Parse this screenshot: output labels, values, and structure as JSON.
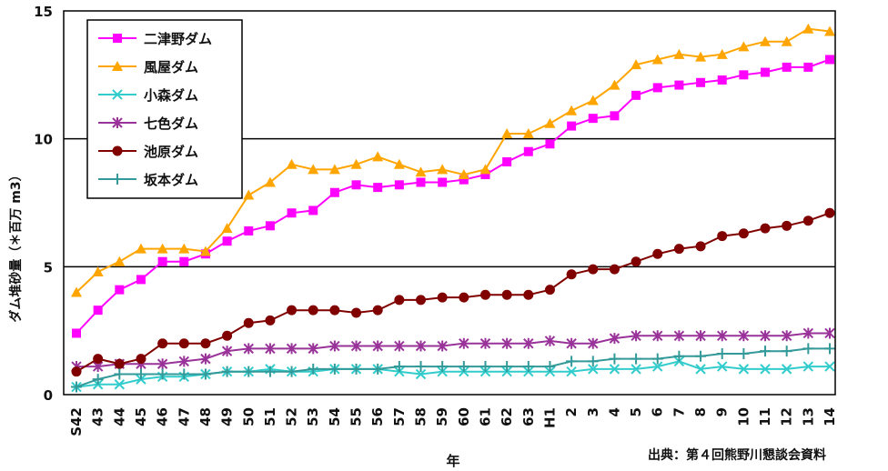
{
  "chart_data": {
    "type": "line",
    "title": "",
    "xlabel": "年",
    "ylabel": "ダム堆砂量（＊百万 m3）",
    "ylim": [
      0,
      15
    ],
    "yticks": [
      0,
      5,
      10,
      15
    ],
    "grid": "horizontal",
    "legend_position": "top-left",
    "categories": [
      "S42",
      "43",
      "44",
      "45",
      "46",
      "47",
      "48",
      "49",
      "50",
      "51",
      "52",
      "53",
      "54",
      "55",
      "56",
      "57",
      "58",
      "59",
      "60",
      "61",
      "62",
      "63",
      "H1",
      "2",
      "3",
      "4",
      "5",
      "6",
      "7",
      "8",
      "9",
      "10",
      "11",
      "12",
      "13",
      "14"
    ],
    "series": [
      {
        "name": "二津野ダム",
        "color": "#ff00ff",
        "marker": "square",
        "values": [
          2.4,
          3.3,
          4.1,
          4.5,
          5.2,
          5.2,
          5.5,
          6.0,
          6.4,
          6.6,
          7.1,
          7.2,
          7.9,
          8.2,
          8.1,
          8.2,
          8.3,
          8.3,
          8.4,
          8.6,
          9.1,
          9.5,
          9.8,
          10.5,
          10.8,
          10.9,
          11.7,
          12.0,
          12.1,
          12.2,
          12.3,
          12.5,
          12.6,
          12.8,
          12.8,
          13.1
        ]
      },
      {
        "name": "風屋ダム",
        "color": "#ffa500",
        "marker": "triangle",
        "values": [
          4.0,
          4.8,
          5.2,
          5.7,
          5.7,
          5.7,
          5.6,
          6.5,
          7.8,
          8.3,
          9.0,
          8.8,
          8.8,
          9.0,
          9.3,
          9.0,
          8.7,
          8.8,
          8.6,
          8.8,
          10.2,
          10.2,
          10.6,
          11.1,
          11.5,
          12.1,
          12.9,
          13.1,
          13.3,
          13.2,
          13.3,
          13.6,
          13.8,
          13.8,
          14.3,
          14.2
        ]
      },
      {
        "name": "小森ダム",
        "color": "#33cccc",
        "marker": "x",
        "values": [
          0.3,
          0.4,
          0.4,
          0.6,
          0.7,
          0.7,
          0.8,
          0.9,
          0.9,
          1.0,
          0.9,
          0.9,
          1.0,
          1.0,
          1.0,
          0.9,
          0.8,
          0.9,
          0.9,
          0.9,
          0.9,
          0.9,
          0.9,
          0.9,
          1.0,
          1.0,
          1.0,
          1.1,
          1.3,
          1.0,
          1.1,
          1.0,
          1.0,
          1.0,
          1.1,
          1.1
        ]
      },
      {
        "name": "七色ダム",
        "color": "#993399",
        "marker": "star",
        "values": [
          1.1,
          1.1,
          1.2,
          1.2,
          1.2,
          1.3,
          1.4,
          1.7,
          1.8,
          1.8,
          1.8,
          1.8,
          1.9,
          1.9,
          1.9,
          1.9,
          1.9,
          1.9,
          2.0,
          2.0,
          2.0,
          2.0,
          2.1,
          2.0,
          2.0,
          2.2,
          2.3,
          2.3,
          2.3,
          2.3,
          2.3,
          2.3,
          2.3,
          2.3,
          2.4,
          2.4
        ]
      },
      {
        "name": "池原ダム",
        "color": "#800000",
        "marker": "circle",
        "values": [
          0.9,
          1.4,
          1.2,
          1.4,
          2.0,
          2.0,
          2.0,
          2.3,
          2.8,
          2.9,
          3.3,
          3.3,
          3.3,
          3.2,
          3.3,
          3.7,
          3.7,
          3.8,
          3.8,
          3.9,
          3.9,
          3.9,
          4.1,
          4.7,
          4.9,
          4.9,
          5.2,
          5.5,
          5.7,
          5.8,
          6.2,
          6.3,
          6.5,
          6.6,
          6.8,
          7.1
        ]
      },
      {
        "name": "坂本ダム",
        "color": "#339999",
        "marker": "plus",
        "values": [
          0.3,
          0.6,
          0.8,
          0.8,
          0.8,
          0.8,
          0.8,
          0.9,
          0.9,
          0.9,
          0.9,
          1.0,
          1.0,
          1.0,
          1.0,
          1.1,
          1.1,
          1.1,
          1.1,
          1.1,
          1.1,
          1.1,
          1.1,
          1.3,
          1.3,
          1.4,
          1.4,
          1.4,
          1.5,
          1.5,
          1.6,
          1.6,
          1.7,
          1.7,
          1.8,
          1.8
        ]
      }
    ]
  },
  "source_note": "出典：第４回熊野川懇談会資料"
}
